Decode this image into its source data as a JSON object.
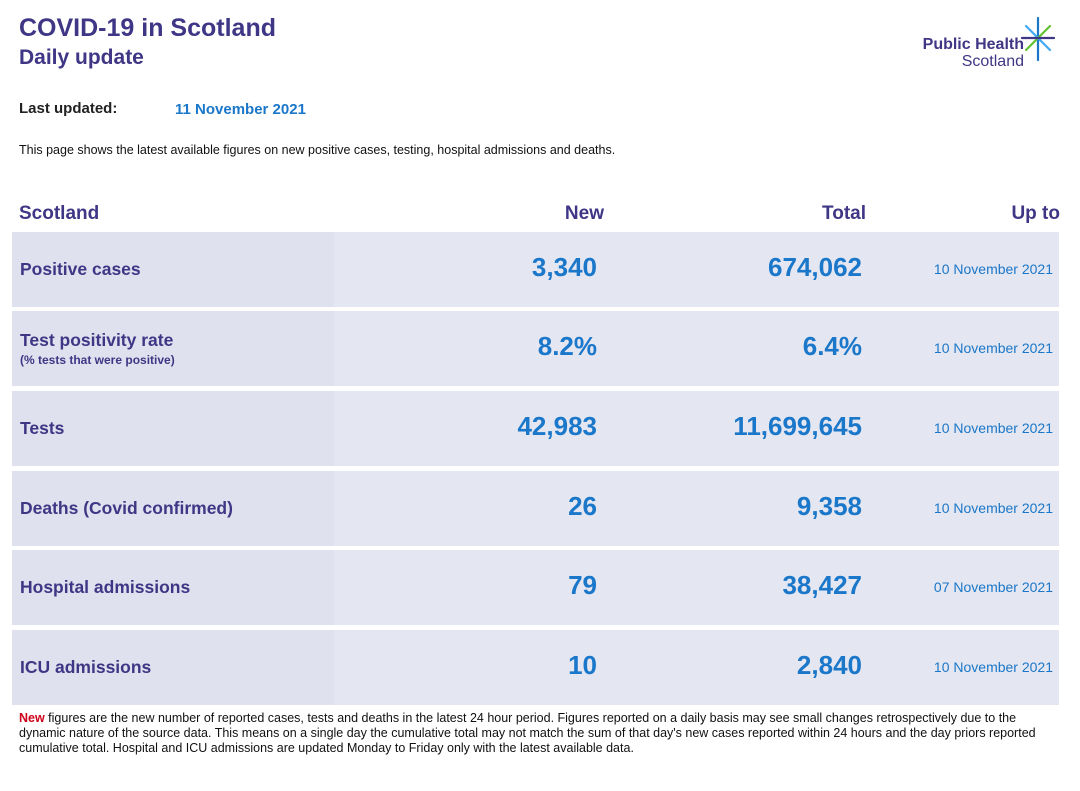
{
  "header": {
    "title": "COVID-19 in Scotland",
    "subtitle": "Daily update",
    "logo_line1": "Public Health",
    "logo_line2": "Scotland"
  },
  "last_updated": {
    "label": "Last updated:",
    "value": "11 November 2021"
  },
  "intro": "This page shows the latest available figures on new positive cases, testing, hospital admissions and deaths.",
  "table": {
    "headers": {
      "region": "Scotland",
      "new": "New",
      "total": "Total",
      "upto": "Up to"
    },
    "rows": [
      {
        "label": "Positive cases",
        "sublabel": "",
        "new": "3,340",
        "total": "674,062",
        "upto": "10 November 2021"
      },
      {
        "label": "Test positivity rate",
        "sublabel": "(% tests that were positive)",
        "new": "8.2%",
        "total": "6.4%",
        "upto": "10 November 2021"
      },
      {
        "label": "Tests",
        "sublabel": "",
        "new": "42,983",
        "total": "11,699,645",
        "upto": "10 November 2021"
      },
      {
        "label": "Deaths (Covid confirmed)",
        "sublabel": "",
        "new": "26",
        "total": "9,358",
        "upto": "10 November 2021"
      },
      {
        "label": "Hospital admissions",
        "sublabel": "",
        "new": "79",
        "total": "38,427",
        "upto": "07 November 2021"
      },
      {
        "label": "ICU admissions",
        "sublabel": "",
        "new": "10",
        "total": "2,840",
        "upto": "10 November 2021"
      }
    ]
  },
  "footnote": {
    "highlight": "New",
    "text": " figures are the new number of reported cases, tests and deaths in the latest 24 hour period. Figures reported on a daily basis may see small changes retrospectively due to the dynamic nature of the source data. This means on a single day the cumulative total may not match the sum of that day's new cases reported within 24 hours and the day priors reported cumulative total. Hospital and ICU admissions are updated Monday to Friday only with the latest available data."
  },
  "colors": {
    "brand": "#3f3685",
    "value": "#1a77c9",
    "highlight": "#d0021b",
    "row_bg": "#e4e6f1"
  },
  "icons": {
    "logo": "phs-star-icon"
  }
}
